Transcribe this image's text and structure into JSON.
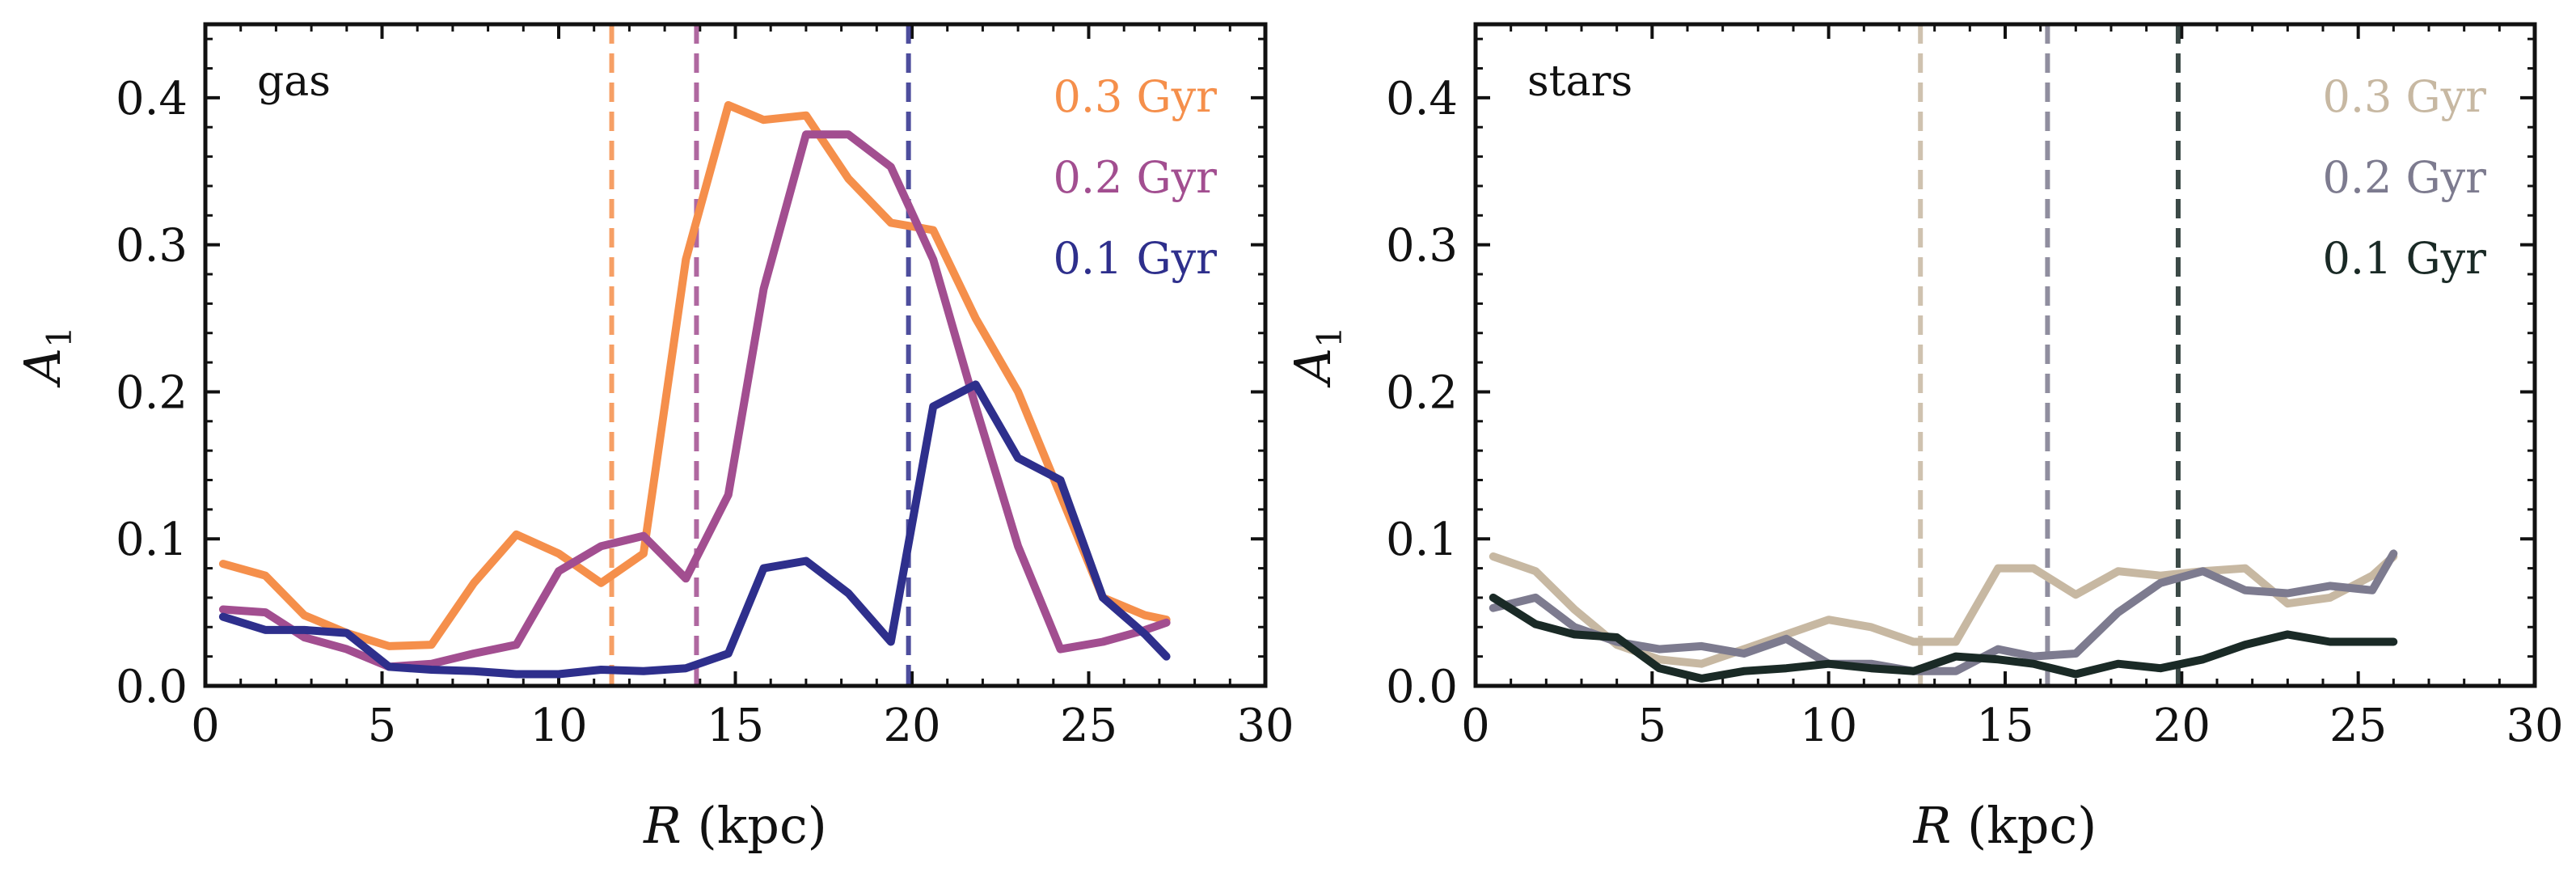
{
  "chart_data": [
    {
      "type": "line",
      "panel_label": "gas",
      "xlabel": "R",
      "xlabel_unit": "(kpc)",
      "ylabel": "A",
      "ylabel_sub": "1",
      "xlim": [
        0,
        30
      ],
      "ylim": [
        0,
        0.45
      ],
      "xticks": [
        "0",
        "5",
        "10",
        "15",
        "20",
        "25",
        "30"
      ],
      "yticks": [
        "0.0",
        "0.1",
        "0.2",
        "0.3",
        "0.4"
      ],
      "legend_position": "top-right",
      "series": [
        {
          "name": "0.3 Gyr",
          "color": "#f58f4b",
          "vline": 11.5,
          "x": [
            0.5,
            1.7,
            2.8,
            4.0,
            5.2,
            6.4,
            7.6,
            8.8,
            10.0,
            11.2,
            12.4,
            13.6,
            14.8,
            15.8,
            17.0,
            18.2,
            19.4,
            20.6,
            21.8,
            23.0,
            24.2,
            25.4,
            26.6,
            27.2
          ],
          "values": [
            0.083,
            0.075,
            0.048,
            0.036,
            0.027,
            0.028,
            0.07,
            0.103,
            0.09,
            0.07,
            0.09,
            0.29,
            0.395,
            0.385,
            0.388,
            0.345,
            0.315,
            0.31,
            0.25,
            0.2,
            0.13,
            0.06,
            0.048,
            0.045
          ]
        },
        {
          "name": "0.2 Gyr",
          "color": "#a24e90",
          "vline": 13.9,
          "x": [
            0.5,
            1.7,
            2.8,
            4.0,
            5.2,
            6.4,
            7.6,
            8.8,
            10.0,
            11.2,
            12.4,
            13.6,
            14.8,
            15.8,
            17.0,
            18.2,
            19.4,
            20.6,
            21.8,
            23.0,
            24.2,
            25.4,
            26.6,
            27.2
          ],
          "values": [
            0.052,
            0.05,
            0.033,
            0.025,
            0.013,
            0.015,
            0.022,
            0.028,
            0.078,
            0.095,
            0.102,
            0.073,
            0.13,
            0.27,
            0.375,
            0.375,
            0.353,
            0.29,
            0.19,
            0.095,
            0.025,
            0.03,
            0.038,
            0.043
          ]
        },
        {
          "name": "0.1 Gyr",
          "color": "#2e2f8c",
          "vline": 19.9,
          "x": [
            0.5,
            1.7,
            2.8,
            4.0,
            5.2,
            6.4,
            7.6,
            8.8,
            10.0,
            11.2,
            12.4,
            13.6,
            14.8,
            15.8,
            17.0,
            18.2,
            19.4,
            20.6,
            21.8,
            23.0,
            24.2,
            25.4,
            26.6,
            27.2
          ],
          "values": [
            0.047,
            0.038,
            0.038,
            0.036,
            0.013,
            0.011,
            0.01,
            0.008,
            0.008,
            0.011,
            0.01,
            0.012,
            0.022,
            0.08,
            0.085,
            0.063,
            0.03,
            0.19,
            0.205,
            0.155,
            0.14,
            0.06,
            0.035,
            0.02
          ]
        }
      ]
    },
    {
      "type": "line",
      "panel_label": "stars",
      "xlabel": "R",
      "xlabel_unit": "(kpc)",
      "ylabel": "A",
      "ylabel_sub": "1",
      "xlim": [
        0,
        30
      ],
      "ylim": [
        0,
        0.45
      ],
      "xticks": [
        "0",
        "5",
        "10",
        "15",
        "20",
        "25",
        "30"
      ],
      "yticks": [
        "0.0",
        "0.1",
        "0.2",
        "0.3",
        "0.4"
      ],
      "legend_position": "top-right",
      "series": [
        {
          "name": "0.3 Gyr",
          "color": "#c7b8a2",
          "vline": 12.6,
          "x": [
            0.5,
            1.7,
            2.8,
            4.0,
            5.2,
            6.4,
            7.6,
            8.8,
            10.0,
            11.2,
            12.4,
            13.6,
            14.8,
            15.8,
            17.0,
            18.2,
            19.4,
            20.6,
            21.8,
            23.0,
            24.2,
            25.4,
            26.0
          ],
          "values": [
            0.088,
            0.078,
            0.052,
            0.028,
            0.018,
            0.015,
            0.025,
            0.035,
            0.045,
            0.04,
            0.03,
            0.03,
            0.08,
            0.08,
            0.062,
            0.078,
            0.075,
            0.078,
            0.08,
            0.056,
            0.06,
            0.075,
            0.088
          ]
        },
        {
          "name": "0.2 Gyr",
          "color": "#7d7b8f",
          "vline": 16.2,
          "x": [
            0.5,
            1.7,
            2.8,
            4.0,
            5.2,
            6.4,
            7.6,
            8.8,
            10.0,
            11.2,
            12.4,
            13.6,
            14.8,
            15.8,
            17.0,
            18.2,
            19.4,
            20.6,
            21.8,
            23.0,
            24.2,
            25.4,
            26.0
          ],
          "values": [
            0.053,
            0.06,
            0.04,
            0.03,
            0.025,
            0.027,
            0.022,
            0.032,
            0.015,
            0.015,
            0.01,
            0.01,
            0.025,
            0.02,
            0.022,
            0.05,
            0.07,
            0.078,
            0.065,
            0.063,
            0.068,
            0.065,
            0.09
          ]
        },
        {
          "name": "0.1 Gyr",
          "color": "#1a2a26",
          "vline": 19.9,
          "x": [
            0.5,
            1.7,
            2.8,
            4.0,
            5.2,
            6.4,
            7.6,
            8.8,
            10.0,
            11.2,
            12.4,
            13.6,
            14.8,
            15.8,
            17.0,
            18.2,
            19.4,
            20.6,
            21.8,
            23.0,
            24.2,
            25.4,
            26.0
          ],
          "values": [
            0.06,
            0.042,
            0.035,
            0.033,
            0.012,
            0.005,
            0.01,
            0.012,
            0.015,
            0.012,
            0.01,
            0.02,
            0.018,
            0.015,
            0.008,
            0.015,
            0.012,
            0.018,
            0.028,
            0.035,
            0.03,
            0.03,
            0.03
          ]
        }
      ]
    }
  ]
}
